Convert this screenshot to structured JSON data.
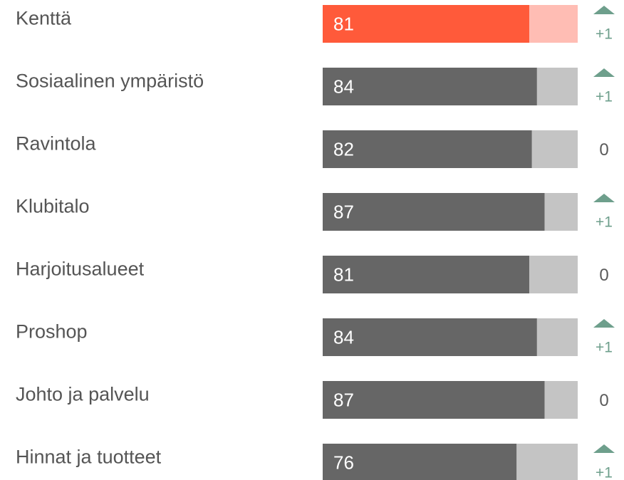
{
  "chart_data": {
    "type": "bar",
    "orientation": "horizontal",
    "categories": [
      "Kenttä",
      "Sosiaalinen ympäristö",
      "Ravintola",
      "Klubitalo",
      "Harjoitusalueet",
      "Proshop",
      "Johto ja palvelu",
      "Hinnat ja tuotteet"
    ],
    "values": [
      81,
      84,
      82,
      87,
      81,
      84,
      87,
      76
    ],
    "colors": [
      "#ff5a3a",
      "#666666",
      "#666666",
      "#666666",
      "#666666",
      "#666666",
      "#666666",
      "#666666"
    ],
    "track_colors": [
      "#ffbdb4",
      "#c4c4c4",
      "#c4c4c4",
      "#c4c4c4",
      "#c4c4c4",
      "#c4c4c4",
      "#c4c4c4",
      "#c4c4c4"
    ],
    "xlim": [
      0,
      100
    ],
    "change": {
      "values": [
        1,
        1,
        0,
        1,
        0,
        1,
        0,
        1
      ],
      "value_labels": [
        "+1",
        "+1",
        "0",
        "+1",
        "0",
        "+1",
        "0",
        "+1"
      ],
      "up_color": "#6e9f8c",
      "color": "#5a5a5a"
    }
  }
}
